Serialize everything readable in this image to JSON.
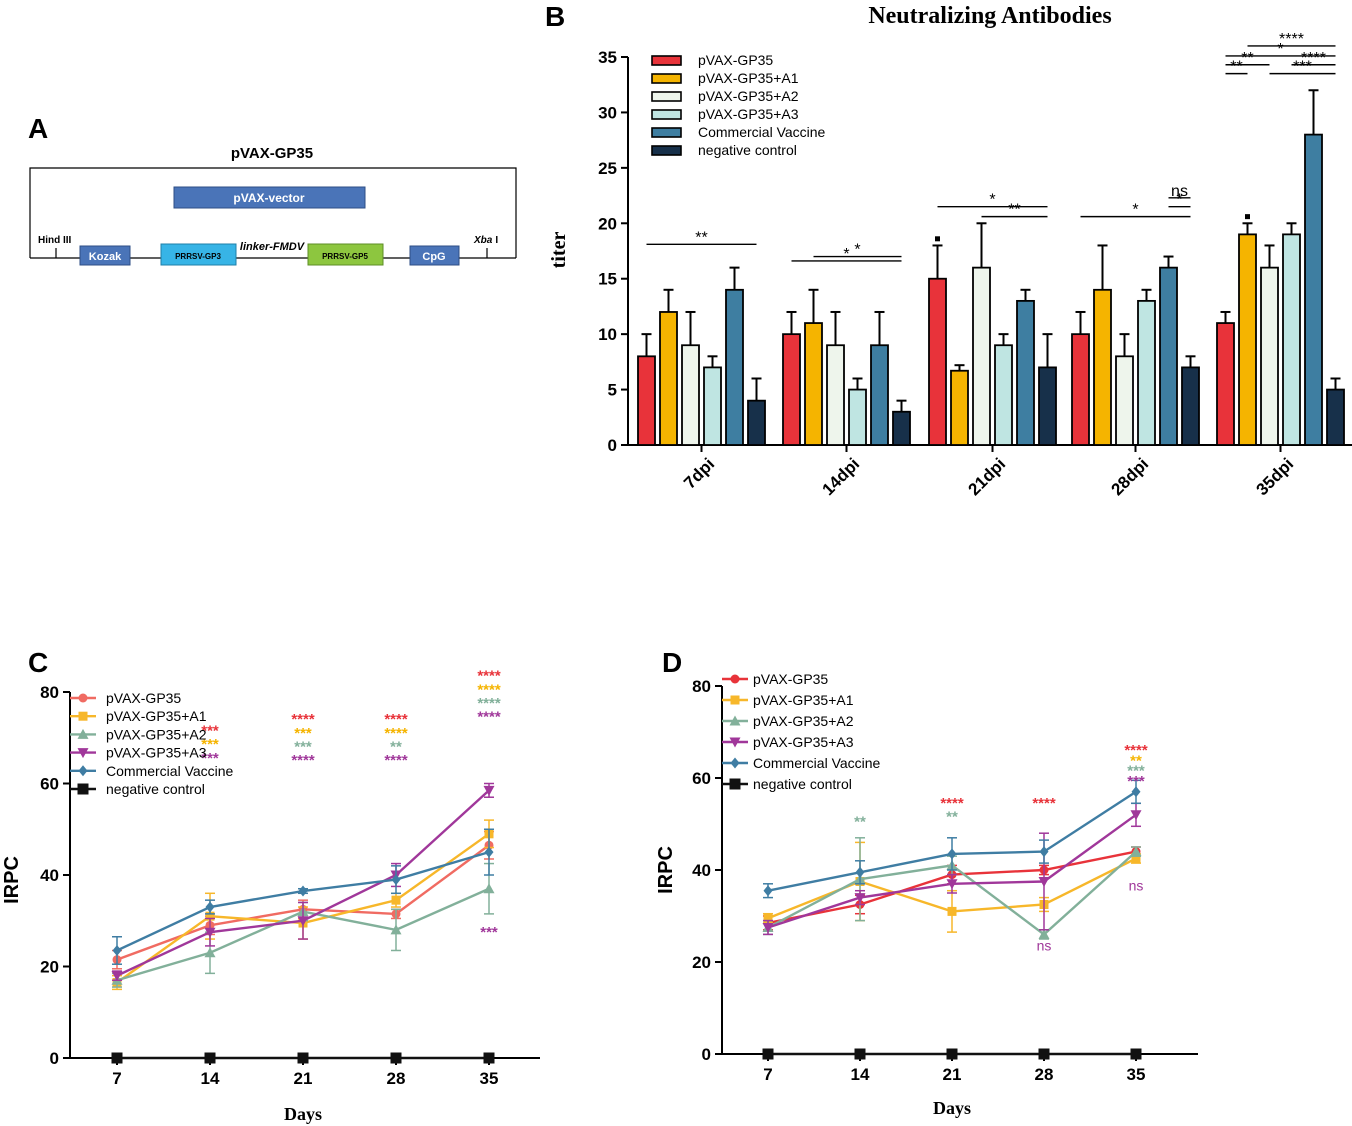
{
  "panels": {
    "a_label": "A",
    "b_label": "B",
    "c_label": "C",
    "d_label": "D"
  },
  "colors": {
    "red": "#e8333a",
    "orange": "#f5b400",
    "pale_green": "#eef5ec",
    "pale_cyan": "#bfe5e2",
    "steel_blue": "#3e7ea1",
    "navy": "#17304a",
    "salmon": "#f06b62",
    "yellow_orange": "#f7b72a",
    "sage": "#82b09a",
    "purple": "#a0379a",
    "teal_blue": "#3f7da3",
    "black": "#111111",
    "blue_box": "#4a74b8",
    "cyan_box": "#37b4e6",
    "green_box": "#8dc63f"
  },
  "construct": {
    "title": "pVAX-GP35",
    "vector_label": "pVAX-vector",
    "hind": "Hind III",
    "kozak": "Kozak",
    "gp3": "PRRSV-GP3",
    "linker": "linker-FMDV",
    "gp5": "PRRSV-GP5",
    "cpg": "CpG",
    "xba": "Xba",
    "xba_suffix": "I"
  },
  "chart_data": [
    {
      "id": "B",
      "type": "bar",
      "title": "Neutralizing Antibodies",
      "ylabel": "titer",
      "xlabel": "",
      "ylim": [
        0,
        35
      ],
      "yticks": [
        "0",
        "5",
        "10",
        "15",
        "20",
        "25",
        "30",
        "35"
      ],
      "categories": [
        "7dpi",
        "14dpi",
        "21dpi",
        "28dpi",
        "35dpi"
      ],
      "series": [
        {
          "name": "pVAX-GP35",
          "color": "#e8333a",
          "values": [
            8,
            10,
            15,
            10,
            11
          ],
          "errors": [
            2,
            2,
            3,
            2,
            1
          ]
        },
        {
          "name": "pVAX-GP35+A1",
          "color": "#f5b400",
          "values": [
            12,
            11,
            6.7,
            14,
            19
          ],
          "errors": [
            2,
            3,
            0.5,
            4,
            1
          ]
        },
        {
          "name": "pVAX-GP35+A2",
          "color": "#eef5ec",
          "values": [
            9,
            9,
            16,
            8,
            16
          ],
          "errors": [
            3,
            3,
            4,
            2,
            2
          ]
        },
        {
          "name": "pVAX-GP35+A3",
          "color": "#bfe5e2",
          "values": [
            7,
            5,
            9,
            13,
            19
          ],
          "errors": [
            1,
            1,
            1,
            1,
            1
          ]
        },
        {
          "name": "Commercial Vaccine",
          "color": "#3e7ea1",
          "values": [
            14,
            9,
            13,
            16,
            28
          ],
          "errors": [
            2,
            3,
            1,
            1,
            4
          ]
        },
        {
          "name": "negative control",
          "color": "#17304a",
          "values": [
            4,
            3,
            7,
            7,
            5
          ],
          "errors": [
            2,
            1,
            3,
            1,
            1
          ]
        }
      ],
      "significance": [
        {
          "label": "**",
          "from_group": 0,
          "from_series": 0,
          "to_series": 5,
          "level": 18.1
        },
        {
          "label": "*",
          "from_group": 1,
          "from_series": 1,
          "to_series": 5,
          "level": 17.0
        },
        {
          "label": "*",
          "from_group": 1,
          "from_series": 0,
          "to_series": 5,
          "level": 16.6
        },
        {
          "label": "*",
          "from_group": 2,
          "from_series": 0,
          "to_series": 5,
          "level": 21.5
        },
        {
          "label": "**",
          "from_group": 2,
          "from_series": 2,
          "to_series": 5,
          "level": 20.6
        },
        {
          "label": "ns",
          "from_group": 3,
          "from_series": 4,
          "to_series": 5,
          "level": 22.3
        },
        {
          "label": "*",
          "from_group": 3,
          "from_series": 4,
          "to_series": 5,
          "level": 21.5
        },
        {
          "label": "*",
          "from_group": 3,
          "from_series": 0,
          "to_series": 5,
          "level": 20.6
        },
        {
          "label": "****",
          "from_group": 4,
          "from_series": 1,
          "to_series": 5,
          "level": 36.0
        },
        {
          "label": "*",
          "from_group": 4,
          "from_series": 0,
          "to_series": 5,
          "level": 35.1
        },
        {
          "label": "**",
          "from_group": 4,
          "from_series": 0,
          "to_series": 2,
          "level": 34.3
        },
        {
          "label": "****",
          "from_group": 4,
          "from_series": 3,
          "to_series": 5,
          "level": 34.3
        },
        {
          "label": "**",
          "from_group": 4,
          "from_series": 0,
          "to_series": 1,
          "level": 33.5
        },
        {
          "label": "***",
          "from_group": 4,
          "from_series": 2,
          "to_series": 5,
          "level": 33.5
        }
      ],
      "small_marks": [
        {
          "group": 2,
          "series": 0,
          "level": 18.6
        },
        {
          "group": 4,
          "series": 1,
          "level": 20.6
        }
      ]
    },
    {
      "id": "C",
      "type": "line",
      "title": "",
      "xlabel": "Days",
      "ylabel": "IRPC",
      "x": [
        "7",
        "14",
        "21",
        "28",
        "35"
      ],
      "ylim": [
        0,
        80
      ],
      "yticks": [
        "0",
        "20",
        "40",
        "60",
        "80"
      ],
      "series": [
        {
          "name": "pVAX-GP35",
          "color": "#f06b62",
          "marker": "circle",
          "values": [
            21.5,
            29.0,
            32.5,
            31.5,
            46.5
          ],
          "errors": [
            2,
            2,
            2,
            1,
            3
          ]
        },
        {
          "name": "pVAX-GP35+A1",
          "color": "#f7b72a",
          "marker": "square",
          "values": [
            16.5,
            31.0,
            29.5,
            34.5,
            49.0
          ],
          "errors": [
            1.5,
            5,
            3.5,
            1.5,
            3
          ]
        },
        {
          "name": "pVAX-GP35+A2",
          "color": "#82b09a",
          "marker": "triangle-up",
          "values": [
            17.0,
            23.0,
            32.0,
            28.0,
            37.0
          ],
          "errors": [
            1.5,
            4.5,
            2,
            4.5,
            5.5
          ]
        },
        {
          "name": "pVAX-GP35+A3",
          "color": "#a0379a",
          "marker": "triangle-down",
          "values": [
            18.0,
            27.5,
            30.0,
            40.0,
            58.5
          ],
          "errors": [
            1,
            3,
            4,
            2.5,
            1.5
          ]
        },
        {
          "name": "Commercial Vaccine",
          "color": "#3f7da3",
          "marker": "diamond",
          "values": [
            23.5,
            33.0,
            36.5,
            39.0,
            45.0
          ],
          "errors": [
            3,
            1.5,
            0.5,
            3,
            5
          ]
        },
        {
          "name": "negative control",
          "color": "#111111",
          "marker": "square-big",
          "values": [
            0,
            0,
            0,
            0,
            0
          ],
          "errors": [
            0,
            0,
            0,
            0,
            0
          ]
        }
      ],
      "annotations": [
        {
          "x_index": 1,
          "y": 70.5,
          "text": "***",
          "color": "#e8333a"
        },
        {
          "x_index": 1,
          "y": 67.5,
          "text": "***",
          "color": "#f5b400"
        },
        {
          "x_index": 1,
          "y": 64.5,
          "text": "***",
          "color": "#a0379a"
        },
        {
          "x_index": 2,
          "y": 73.0,
          "text": "****",
          "color": "#e8333a"
        },
        {
          "x_index": 2,
          "y": 70.0,
          "text": "***",
          "color": "#f5b400"
        },
        {
          "x_index": 2,
          "y": 67.0,
          "text": "***",
          "color": "#82b09a"
        },
        {
          "x_index": 2,
          "y": 64.0,
          "text": "****",
          "color": "#a0379a"
        },
        {
          "x_index": 3,
          "y": 73.0,
          "text": "****",
          "color": "#e8333a"
        },
        {
          "x_index": 3,
          "y": 70.0,
          "text": "****",
          "color": "#f5b400"
        },
        {
          "x_index": 3,
          "y": 67.0,
          "text": "**",
          "color": "#82b09a"
        },
        {
          "x_index": 3,
          "y": 64.0,
          "text": "****",
          "color": "#a0379a"
        },
        {
          "x_index": 4,
          "y": 82.5,
          "text": "****",
          "color": "#e8333a"
        },
        {
          "x_index": 4,
          "y": 79.5,
          "text": "****",
          "color": "#f5b400"
        },
        {
          "x_index": 4,
          "y": 76.5,
          "text": "****",
          "color": "#82b09a"
        },
        {
          "x_index": 4,
          "y": 73.5,
          "text": "****",
          "color": "#a0379a"
        },
        {
          "x_index": 4,
          "y": 26.5,
          "text": "***",
          "color": "#a0379a"
        }
      ]
    },
    {
      "id": "D",
      "type": "line",
      "title": "",
      "xlabel": "Days",
      "ylabel": "IRPC",
      "x": [
        "7",
        "14",
        "21",
        "28",
        "35"
      ],
      "ylim": [
        0,
        80
      ],
      "yticks": [
        "0",
        "20",
        "40",
        "60",
        "80"
      ],
      "series": [
        {
          "name": "pVAX-GP35",
          "color": "#e8333a",
          "marker": "circle",
          "values": [
            28.5,
            32.5,
            39.0,
            40.0,
            44.0
          ],
          "errors": [
            1.5,
            2,
            2,
            1,
            1
          ]
        },
        {
          "name": "pVAX-GP35+A1",
          "color": "#f7b72a",
          "marker": "square",
          "values": [
            29.5,
            37.5,
            31.0,
            32.5,
            42.5
          ],
          "errors": [
            1,
            8.5,
            4.5,
            1.5,
            1
          ]
        },
        {
          "name": "pVAX-GP35+A2",
          "color": "#82b09a",
          "marker": "triangle-up",
          "values": [
            27.5,
            38.0,
            41.0,
            26.0,
            44.0
          ],
          "errors": [
            1.5,
            9,
            2,
            1,
            1
          ]
        },
        {
          "name": "pVAX-GP35+A3",
          "color": "#a0379a",
          "marker": "triangle-down",
          "values": [
            27.5,
            34.0,
            37.0,
            37.5,
            52.0
          ],
          "errors": [
            1.5,
            1.5,
            2,
            10.5,
            2.5
          ]
        },
        {
          "name": "Commercial Vaccine",
          "color": "#3f7da3",
          "marker": "diamond",
          "values": [
            35.5,
            39.5,
            43.5,
            44.0,
            57.0
          ],
          "errors": [
            1.5,
            2.5,
            3.5,
            2.5,
            2.5
          ]
        },
        {
          "name": "negative control",
          "color": "#111111",
          "marker": "square-big",
          "values": [
            0,
            0,
            0,
            0,
            0
          ],
          "errors": [
            0,
            0,
            0,
            0,
            0
          ]
        }
      ],
      "annotations": [
        {
          "x_index": 1,
          "y": 49.5,
          "text": "**",
          "color": "#82b09a",
          "small": true
        },
        {
          "x_index": 2,
          "y": 53.5,
          "text": "****",
          "color": "#e8333a",
          "small": true
        },
        {
          "x_index": 2,
          "y": 50.5,
          "text": "**",
          "color": "#82b09a",
          "small": true
        },
        {
          "x_index": 3,
          "y": 53.5,
          "text": "****",
          "color": "#e8333a",
          "small": true
        },
        {
          "x_index": 4,
          "y": 65.0,
          "text": "****",
          "color": "#e8333a",
          "small": true
        },
        {
          "x_index": 4,
          "y": 62.7,
          "text": "**",
          "color": "#f5b400",
          "small": true
        },
        {
          "x_index": 4,
          "y": 60.5,
          "text": "***",
          "color": "#82b09a",
          "small": true
        },
        {
          "x_index": 4,
          "y": 58.3,
          "text": "***",
          "color": "#a0379a",
          "small": true
        },
        {
          "x_index": 3,
          "y": 22.5,
          "text": "ns",
          "color": "#a0379a",
          "plain": true
        },
        {
          "x_index": 4,
          "y": 35.5,
          "text": "ns",
          "color": "#a0379a",
          "plain": true
        }
      ]
    }
  ]
}
